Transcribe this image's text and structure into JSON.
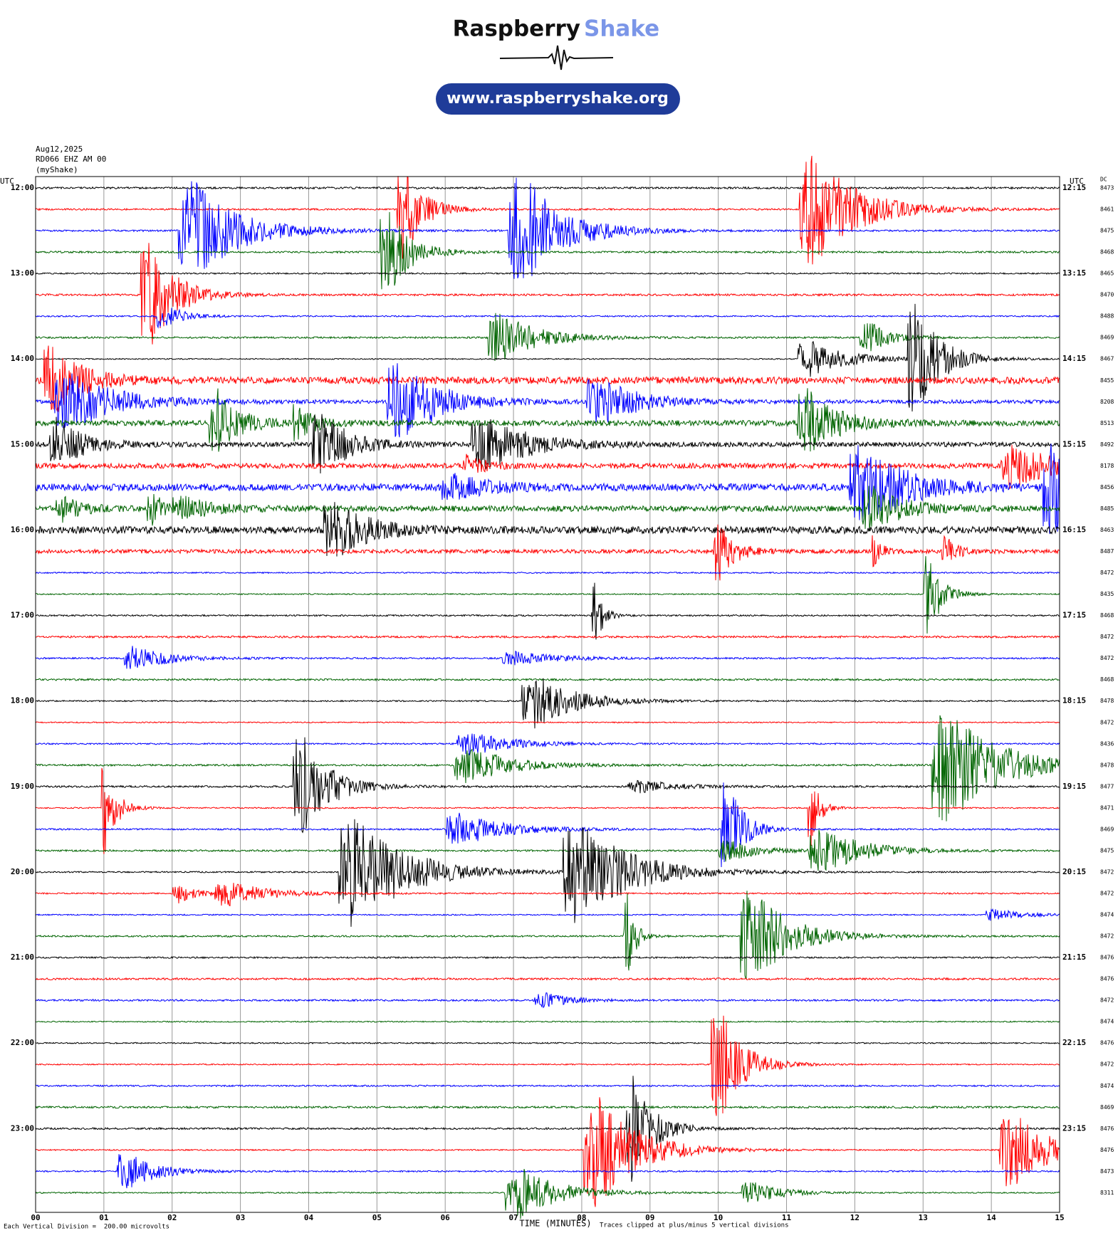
{
  "logo": {
    "word1": "Raspberry",
    "word2": "Shake",
    "url": "www.raspberryshake.org"
  },
  "header": {
    "date": "Aug12,2025",
    "station": "RD066 EHZ AM 00",
    "source": "(myShake)"
  },
  "plot": {
    "left_title": "UTC",
    "right_title": "UTC",
    "dc_title": "DC",
    "left_labels": [
      "12:00",
      "13:00",
      "14:00",
      "15:00",
      "16:00",
      "17:00",
      "18:00",
      "19:00",
      "20:00",
      "21:00",
      "22:00",
      "23:00"
    ],
    "right_labels": [
      "12:15",
      "13:15",
      "14:15",
      "15:15",
      "16:15",
      "17:15",
      "18:15",
      "19:15",
      "20:15",
      "21:15",
      "22:15",
      "23:15"
    ],
    "dc_values": [
      "8473",
      "8461",
      "8475",
      "8468",
      "8465",
      "8470",
      "8488",
      "8469",
      "8467",
      "8455",
      "8208",
      "8513",
      "8492",
      "8178",
      "8456",
      "8485",
      "8463",
      "8487",
      "8472",
      "8435",
      "8468",
      "8472",
      "8472",
      "8468",
      "8478",
      "8472",
      "8436",
      "8478",
      "8477",
      "8471",
      "8469",
      "8475",
      "8472",
      "8472",
      "8474",
      "8472",
      "8476",
      "8476",
      "8472",
      "8474",
      "8476",
      "8472",
      "8474",
      "8469",
      "8476",
      "8476",
      "8473",
      "8311"
    ],
    "x_ticks": [
      {
        "value": 0,
        "label": "00"
      },
      {
        "value": 1,
        "label": "01"
      },
      {
        "value": 2,
        "label": "02"
      },
      {
        "value": 3,
        "label": "03"
      },
      {
        "value": 4,
        "label": "04"
      },
      {
        "value": 5,
        "label": "05"
      },
      {
        "value": 6,
        "label": "06"
      },
      {
        "value": 7,
        "label": "07"
      },
      {
        "value": 8,
        "label": "08"
      },
      {
        "value": 9,
        "label": "09"
      },
      {
        "value": 10,
        "label": "10"
      },
      {
        "value": 11,
        "label": "11"
      },
      {
        "value": 12,
        "label": "12"
      },
      {
        "value": 13,
        "label": "13"
      },
      {
        "value": 14,
        "label": "14"
      },
      {
        "value": 15,
        "label": "15"
      }
    ],
    "x_label": "TIME (MINUTES)",
    "footer_left": "Each Vertical Division =  200.00 microvolts",
    "footer_right": "Traces clipped at plus/minus 5 vertical divisions",
    "trace_colors": [
      "#000000",
      "#ff0000",
      "#0000ff",
      "#006400"
    ]
  }
}
